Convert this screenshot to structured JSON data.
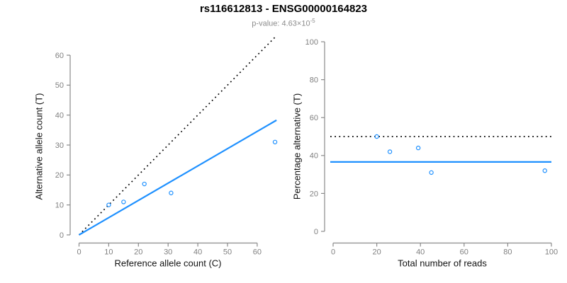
{
  "header": {
    "title": "rs116612813 - ENSG00000164823",
    "subtitle_prefix": "p-value: 4.63×10",
    "subtitle_exponent": "-5"
  },
  "colors": {
    "accent_blue": "#1E90FF",
    "axis_line": "#8a8a8a",
    "tick_label": "#808080",
    "identity_line": "#000000",
    "title_text": "#000000",
    "subtitle_text": "#8c8c8c"
  },
  "chart_data": [
    {
      "type": "scatter",
      "xlabel": "Reference allele count (C)",
      "ylabel": "Alternative allele count (T)",
      "xlim": [
        0,
        66
      ],
      "ylim": [
        0,
        66
      ],
      "xticks": [
        0,
        10,
        20,
        30,
        40,
        50,
        60
      ],
      "yticks": [
        0,
        10,
        20,
        30,
        40,
        50,
        60
      ],
      "grid": false,
      "points": [
        [
          10,
          10
        ],
        [
          15,
          11
        ],
        [
          22,
          17
        ],
        [
          31,
          14
        ],
        [
          66,
          31
        ]
      ],
      "lines": [
        {
          "name": "identity-line",
          "style": "dotted",
          "color_key": "identity_line",
          "x1": 0,
          "y1": 0,
          "x2": 66.3,
          "y2": 66.3
        },
        {
          "name": "fit-line",
          "style": "solid",
          "color_key": "accent_blue",
          "x1": 0,
          "y1": 0,
          "x2": 66.5,
          "y2": 38.3
        }
      ]
    },
    {
      "type": "scatter",
      "xlabel": "Total number of reads",
      "ylabel": "Percentage alternative (T)",
      "xlim": [
        0,
        100
      ],
      "ylim": [
        0,
        100
      ],
      "xticks": [
        0,
        20,
        40,
        60,
        80,
        100
      ],
      "yticks": [
        0,
        20,
        40,
        60,
        80,
        100
      ],
      "grid": false,
      "points": [
        [
          20,
          50
        ],
        [
          26,
          42
        ],
        [
          39,
          44
        ],
        [
          45,
          31
        ],
        [
          97,
          32
        ]
      ],
      "lines": [
        {
          "name": "expected-50pct-line",
          "style": "dotted",
          "color_key": "identity_line",
          "x1": -1.3,
          "y1": 50,
          "x2": 100,
          "y2": 50
        },
        {
          "name": "mean-percentage-line",
          "style": "solid",
          "color_key": "accent_blue",
          "x1": -1.3,
          "y1": 36.6,
          "x2": 100,
          "y2": 36.6
        }
      ]
    }
  ]
}
